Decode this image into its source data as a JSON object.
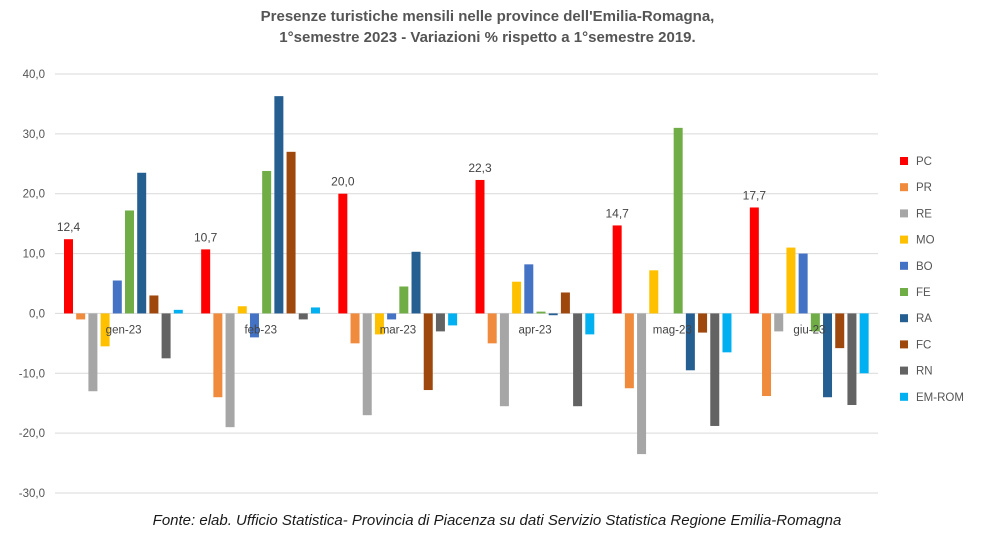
{
  "chart_data": {
    "type": "bar",
    "title": "Presenze turistiche mensili nelle province dell'Emilia-Romagna,",
    "subtitle": "1°semestre 2023 - Variazioni % rispetto a 1°semestre 2019.",
    "xlabel": "",
    "ylabel": "",
    "ylim": [
      -30,
      40
    ],
    "yticks": [
      "-30,0",
      "-20,0",
      "-10,0",
      "0,0",
      "10,0",
      "20,0",
      "30,0",
      "40,0"
    ],
    "ytick_values": [
      -30,
      -20,
      -10,
      0,
      10,
      20,
      30,
      40
    ],
    "grid": true,
    "legend_position": "right",
    "categories": [
      "gen-23",
      "feb-23",
      "mar-23",
      "apr-23",
      "mag-23",
      "giu-23"
    ],
    "series": [
      {
        "name": "PC",
        "color": "#ff0000",
        "values": [
          12.4,
          10.7,
          20.0,
          22.3,
          14.7,
          17.7
        ]
      },
      {
        "name": "PR",
        "color": "#f08a3c",
        "values": [
          -1.0,
          -14.0,
          -5.0,
          -5.0,
          -12.5,
          -13.8
        ]
      },
      {
        "name": "RE",
        "color": "#a6a6a6",
        "values": [
          -13.0,
          -19.0,
          -17.0,
          -15.5,
          -23.5,
          -3.0
        ]
      },
      {
        "name": "MO",
        "color": "#ffc000",
        "values": [
          -5.5,
          1.2,
          -3.5,
          5.3,
          7.2,
          11.0
        ]
      },
      {
        "name": "BO",
        "color": "#4472c4",
        "values": [
          5.5,
          -4.0,
          -1.0,
          8.2,
          0.0,
          10.0
        ]
      },
      {
        "name": "FE",
        "color": "#70ad47",
        "values": [
          17.2,
          23.8,
          4.5,
          0.3,
          31.0,
          -3.0
        ]
      },
      {
        "name": "RA",
        "color": "#255e91",
        "values": [
          23.5,
          36.3,
          10.3,
          -0.3,
          -9.5,
          -14.0
        ]
      },
      {
        "name": "FC",
        "color": "#9e480e",
        "values": [
          3.0,
          27.0,
          -12.8,
          3.5,
          -3.2,
          -5.8
        ]
      },
      {
        "name": "RN",
        "color": "#636363",
        "values": [
          -7.5,
          -1.0,
          -3.0,
          -15.5,
          -18.8,
          -15.3
        ]
      },
      {
        "name": "EM-ROM",
        "color": "#00b0f0",
        "values": [
          0.6,
          1.0,
          -2.0,
          -3.5,
          -6.5,
          -10.0
        ]
      }
    ],
    "data_labels": [
      {
        "series": "PC",
        "category": "gen-23",
        "text": "12,4"
      },
      {
        "series": "PC",
        "category": "feb-23",
        "text": "10,7"
      },
      {
        "series": "PC",
        "category": "mar-23",
        "text": "20,0"
      },
      {
        "series": "PC",
        "category": "apr-23",
        "text": "22,3"
      },
      {
        "series": "PC",
        "category": "mag-23",
        "text": "14,7"
      },
      {
        "series": "PC",
        "category": "giu-23",
        "text": "17,7"
      }
    ]
  },
  "source": "Fonte: elab. Ufficio Statistica- Provincia di Piacenza su dati Servizio Statistica Regione Emilia-Romagna"
}
